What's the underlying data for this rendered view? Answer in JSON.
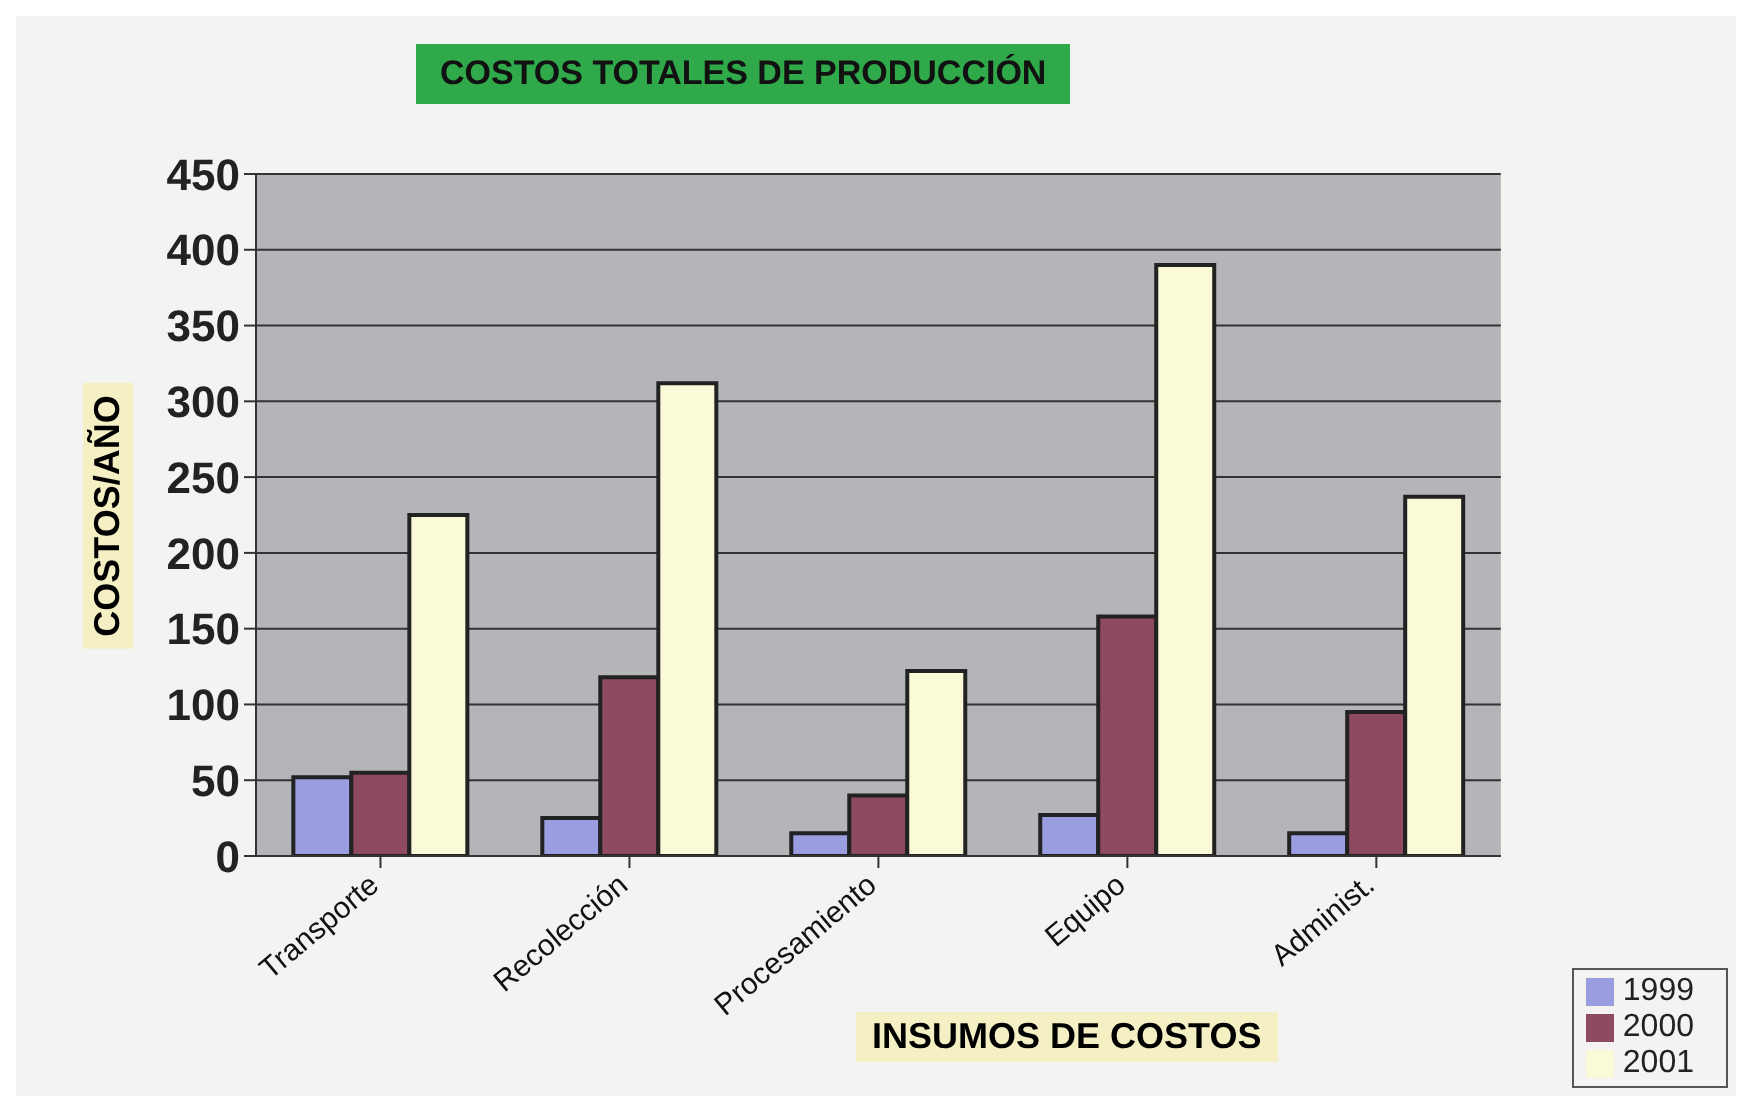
{
  "chart_data": {
    "type": "bar",
    "title": "COSTOS TOTALES DE PRODUCCIÓN",
    "xlabel": "INSUMOS DE COSTOS",
    "ylabel": "COSTOS/AÑO",
    "categories": [
      "Transporte",
      "Recolección",
      "Procesamiento",
      "Equipo",
      "Administ."
    ],
    "series": [
      {
        "name": "1999",
        "color": "#9a9ee0",
        "values": [
          52,
          25,
          15,
          27,
          15
        ]
      },
      {
        "name": "2000",
        "color": "#8e4a5e",
        "values": [
          55,
          118,
          40,
          158,
          95
        ]
      },
      {
        "name": "2001",
        "color": "#fafad8",
        "values": [
          225,
          312,
          122,
          390,
          237
        ]
      }
    ],
    "ylim": [
      0,
      450
    ],
    "yticks": [
      0,
      50,
      100,
      150,
      200,
      250,
      300,
      350,
      400,
      450
    ],
    "grid": "y",
    "legend": "bottom right"
  }
}
